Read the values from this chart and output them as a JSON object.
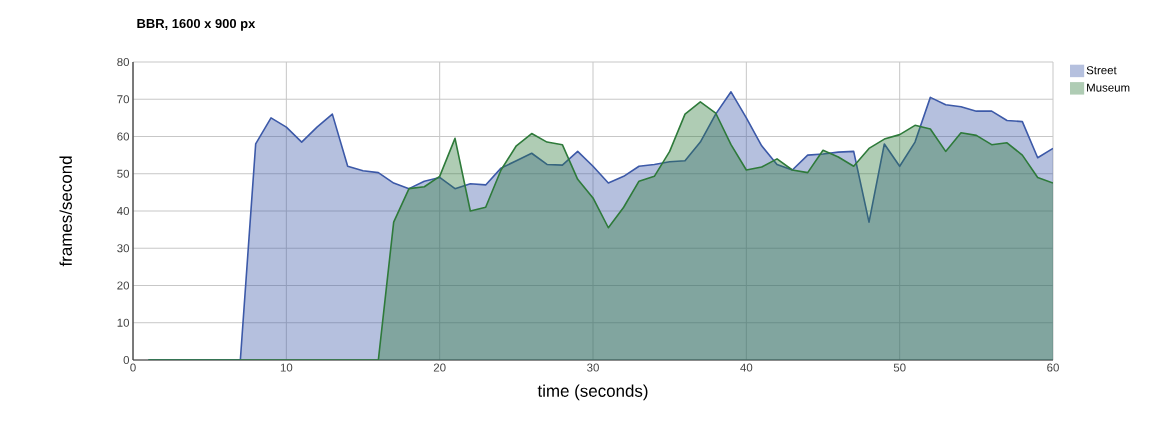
{
  "chart_data": {
    "type": "area",
    "title": "BBR, 1600 x 900 px",
    "xlabel": "time (seconds)",
    "ylabel": "frames/second",
    "x": [
      1,
      2,
      3,
      4,
      5,
      6,
      7,
      8,
      9,
      10,
      11,
      12,
      13,
      14,
      15,
      16,
      17,
      18,
      19,
      20,
      21,
      22,
      23,
      24,
      25,
      26,
      27,
      28,
      29,
      30,
      31,
      32,
      33,
      34,
      35,
      36,
      37,
      38,
      39,
      40,
      41,
      42,
      43,
      44,
      45,
      46,
      47,
      48,
      49,
      50,
      51,
      52,
      53,
      54,
      55,
      56,
      57,
      58,
      59,
      60
    ],
    "series": [
      {
        "name": "Street",
        "color": "#3c59a8",
        "values": [
          0,
          0,
          0,
          0,
          0,
          0,
          0,
          58,
          65,
          62.5,
          58.5,
          62.5,
          66,
          52,
          50.8,
          50.3,
          47.5,
          46,
          48,
          49,
          46,
          47.3,
          47,
          51.5,
          53.5,
          55.5,
          52.5,
          52.3,
          56,
          52,
          47.5,
          49.3,
          52,
          52.5,
          53.2,
          53.5,
          58.5,
          66,
          72,
          65,
          57.5,
          52.5,
          51,
          55,
          55.3,
          55.8,
          56,
          37,
          58,
          52,
          58.5,
          70.5,
          68.5,
          68,
          66.8,
          66.8,
          64.3,
          64,
          54.3,
          56.8
        ]
      },
      {
        "name": "Museum",
        "color": "#2e7a3a",
        "values": [
          0,
          0,
          0,
          0,
          0,
          0,
          0,
          0,
          0,
          0,
          0,
          0,
          0,
          0,
          0,
          0,
          37,
          46,
          46.5,
          49.3,
          59.5,
          40,
          41,
          51,
          57.5,
          60.8,
          58.5,
          57.8,
          48.5,
          43.5,
          35.5,
          41,
          48,
          49.3,
          56,
          66,
          69.3,
          66.3,
          57.8,
          51,
          51.8,
          54,
          51,
          50.3,
          56.3,
          54.5,
          52,
          56.8,
          59.3,
          60.5,
          63,
          62,
          56,
          61,
          60.3,
          57.8,
          58.3,
          55,
          49,
          47.5
        ]
      }
    ],
    "xlim": [
      0,
      60
    ],
    "xticks": [
      0,
      10,
      20,
      30,
      40,
      50,
      60
    ],
    "ylim": [
      0,
      80
    ],
    "yticks": [
      0,
      10,
      20,
      30,
      40,
      50,
      60,
      70,
      80
    ],
    "grid": true,
    "legend": "top right"
  }
}
